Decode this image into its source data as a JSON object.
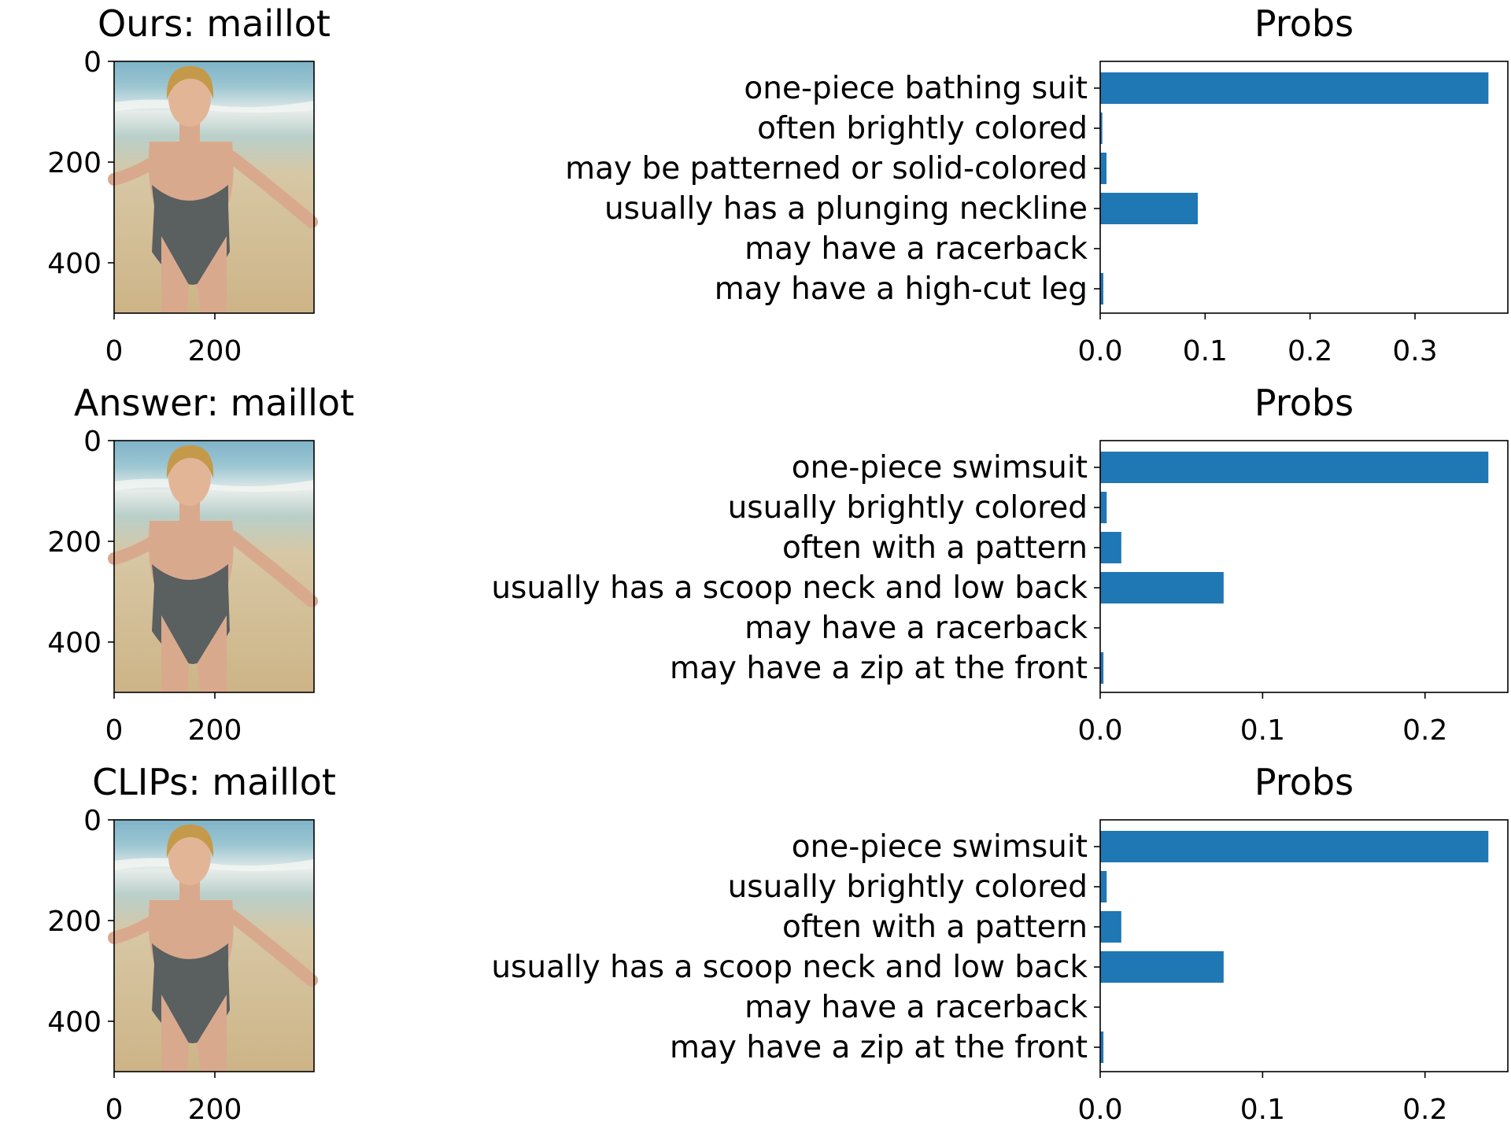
{
  "panels": [
    {
      "image_title": "Ours: maillot",
      "image_axis": {
        "y_ticks": [
          "0",
          "200",
          "400"
        ],
        "x_ticks": [
          "0",
          "200"
        ]
      },
      "chart_data": {
        "type": "bar",
        "orientation": "horizontal",
        "title": "Probs",
        "categories": [
          "one-piece bathing suit",
          "often brightly colored",
          "may be patterned or solid-colored",
          "usually has a plunging neckline",
          "may have a racerback",
          "may have a high-cut leg"
        ],
        "values": [
          0.37,
          0.002,
          0.006,
          0.093,
          0.0,
          0.003
        ],
        "x_ticks": [
          0.0,
          0.1,
          0.2,
          0.3
        ],
        "x_tick_labels": [
          "0.0",
          "0.1",
          "0.2",
          "0.3"
        ],
        "xlim": [
          0,
          0.3885
        ],
        "color": "#1f77b4",
        "grid": false
      }
    },
    {
      "image_title": "Answer: maillot",
      "image_axis": {
        "y_ticks": [
          "0",
          "200",
          "400"
        ],
        "x_ticks": [
          "0",
          "200"
        ]
      },
      "chart_data": {
        "type": "bar",
        "orientation": "horizontal",
        "title": "Probs",
        "categories": [
          "one-piece swimsuit",
          "usually brightly colored",
          "often with a pattern",
          "usually has a scoop neck and low back",
          "may have a racerback",
          "may have a zip at the front"
        ],
        "values": [
          0.239,
          0.004,
          0.013,
          0.076,
          0.0,
          0.002
        ],
        "x_ticks": [
          0.0,
          0.1,
          0.2
        ],
        "x_tick_labels": [
          "0.0",
          "0.1",
          "0.2"
        ],
        "xlim": [
          0,
          0.251
        ],
        "color": "#1f77b4",
        "grid": false
      }
    },
    {
      "image_title": "CLIPs: maillot",
      "image_axis": {
        "y_ticks": [
          "0",
          "200",
          "400"
        ],
        "x_ticks": [
          "0",
          "200"
        ]
      },
      "chart_data": {
        "type": "bar",
        "orientation": "horizontal",
        "title": "Probs",
        "categories": [
          "one-piece swimsuit",
          "usually brightly colored",
          "often with a pattern",
          "usually has a scoop neck and low back",
          "may have a racerback",
          "may have a zip at the front"
        ],
        "values": [
          0.239,
          0.004,
          0.013,
          0.076,
          0.0,
          0.002
        ],
        "x_ticks": [
          0.0,
          0.1,
          0.2
        ],
        "x_tick_labels": [
          "0.0",
          "0.1",
          "0.2"
        ],
        "xlim": [
          0,
          0.251
        ],
        "color": "#1f77b4",
        "grid": false
      }
    }
  ]
}
